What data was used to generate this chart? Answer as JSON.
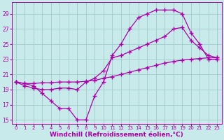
{
  "background_color": "#c8eaea",
  "grid_color": "#a0cccc",
  "line_color": "#aa00aa",
  "marker": "+",
  "markersize": 4,
  "markeredgewidth": 1.0,
  "linewidth": 0.9,
  "xlabel": "Windchill (Refroidissement éolien,°C)",
  "xlabel_fontsize": 6.5,
  "xlabel_fontweight": "bold",
  "xtick_fontsize": 5.0,
  "ytick_fontsize": 5.5,
  "xlim": [
    -0.5,
    23.5
  ],
  "ylim": [
    14.5,
    30.5
  ],
  "yticks": [
    15,
    17,
    19,
    21,
    23,
    25,
    27,
    29
  ],
  "xticks": [
    0,
    1,
    2,
    3,
    4,
    5,
    6,
    7,
    8,
    9,
    10,
    11,
    12,
    13,
    14,
    15,
    16,
    17,
    18,
    19,
    20,
    21,
    22,
    23
  ],
  "line1_x": [
    0,
    1,
    2,
    3,
    4,
    5,
    6,
    7,
    8,
    9,
    10,
    11,
    12,
    13,
    14,
    15,
    16,
    17,
    18,
    19,
    20,
    21,
    22,
    23
  ],
  "line1_y": [
    20.0,
    19.8,
    19.5,
    18.5,
    17.5,
    16.5,
    16.5,
    15.0,
    15.0,
    18.2,
    20.0,
    23.5,
    25.0,
    27.0,
    28.5,
    29.0,
    29.5,
    29.5,
    29.5,
    29.0,
    26.5,
    25.0,
    23.0,
    23.0
  ],
  "line2_x": [
    0,
    1,
    2,
    3,
    4,
    5,
    6,
    7,
    8,
    9,
    10,
    11,
    12,
    13,
    14,
    15,
    16,
    17,
    18,
    19,
    20,
    21,
    22,
    23
  ],
  "line2_y": [
    20.0,
    19.5,
    19.2,
    19.0,
    19.0,
    19.2,
    19.2,
    19.0,
    20.0,
    20.5,
    21.5,
    23.2,
    23.5,
    24.0,
    24.5,
    25.0,
    25.5,
    26.0,
    27.0,
    27.2,
    25.5,
    24.5,
    23.5,
    23.2
  ],
  "line3_x": [
    0,
    1,
    2,
    3,
    4,
    5,
    6,
    7,
    8,
    9,
    10,
    11,
    12,
    13,
    14,
    15,
    16,
    17,
    18,
    19,
    20,
    21,
    22,
    23
  ],
  "line3_y": [
    20.0,
    19.8,
    19.8,
    19.9,
    19.9,
    20.0,
    20.0,
    20.0,
    20.1,
    20.2,
    20.5,
    20.7,
    21.0,
    21.3,
    21.6,
    21.9,
    22.2,
    22.5,
    22.7,
    22.9,
    23.0,
    23.1,
    23.2,
    23.2
  ]
}
